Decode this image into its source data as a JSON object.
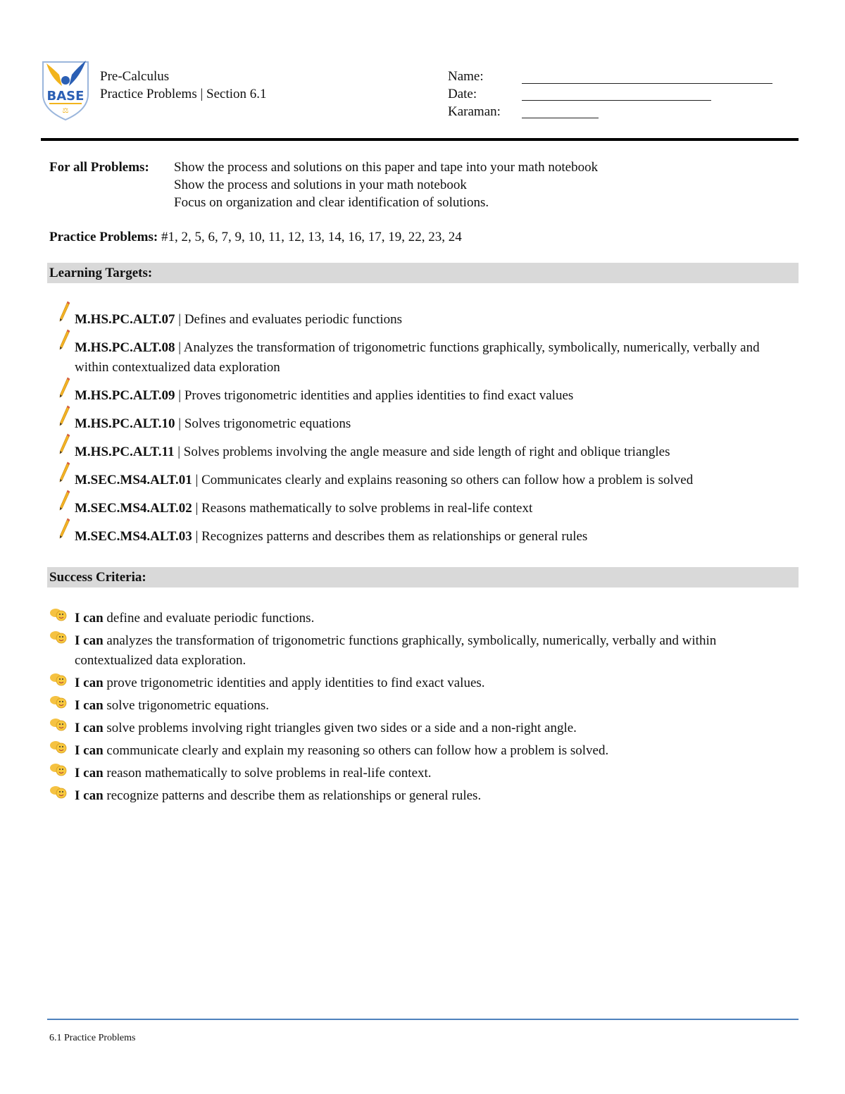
{
  "logo": {
    "text": "BASE",
    "colors": {
      "gold": "#f2b41c",
      "blue": "#2b5fb4"
    }
  },
  "header": {
    "course": "Pre-Calculus",
    "subtitle": "Practice Problems | Section 6.1"
  },
  "fields": [
    {
      "label": "Name:"
    },
    {
      "label": "Date:"
    },
    {
      "label": "Karaman:"
    }
  ],
  "instructions": {
    "label": "For all Problems:",
    "lines": [
      "Show the process and solutions on this paper and tape into your math notebook",
      "Show the process and solutions in your math notebook",
      "Focus on organization and clear identification of solutions."
    ]
  },
  "practice": {
    "label": "Practice Problems:",
    "value": "#1, 2, 5, 6, 7, 9, 10, 11, 12, 13, 14, 16, 17, 19, 22, 23, 24"
  },
  "learning_targets": {
    "title": "Learning Targets:",
    "icon": "pencil-icon",
    "items": [
      {
        "code": "M.HS.PC.ALT.07",
        "text": " | Defines and evaluates periodic functions"
      },
      {
        "code": "M.HS.PC.ALT.08",
        "text": " | Analyzes the transformation of trigonometric functions graphically, symbolically, numerically, verbally and within contextualized data exploration"
      },
      {
        "code": "M.HS.PC.ALT.09",
        "text": " | Proves trigonometric identities and applies identities to find exact values"
      },
      {
        "code": "M.HS.PC.ALT.10",
        "text": " | Solves trigonometric equations"
      },
      {
        "code": "M.HS.PC.ALT.11",
        "text": " | Solves problems involving the angle measure and side length of right and oblique triangles"
      },
      {
        "code": "M.SEC.MS4.ALT.01",
        "text": " | Communicates clearly and explains reasoning so others can follow how a problem is solved"
      },
      {
        "code": "M.SEC.MS4.ALT.02",
        "text": " | Reasons mathematically to solve problems in real-life context"
      },
      {
        "code": "M.SEC.MS4.ALT.03",
        "text": " | Recognizes patterns and describes them as relationships or general rules"
      }
    ]
  },
  "success_criteria": {
    "title": "Success Criteria:",
    "icon": "thumbs-up-smiley-icon",
    "lead": "I can",
    "items": [
      " define and evaluate periodic functions.",
      " analyzes the transformation of trigonometric functions graphically, symbolically, numerically, verbally and within contextualized data exploration.",
      " prove trigonometric identities and apply identities to find exact values.",
      " solve trigonometric equations.",
      " solve problems involving right triangles given two sides or a side and a non-right angle.",
      " communicate clearly and explain my reasoning so others can follow how a problem is solved.",
      " reason mathematically to solve problems in real-life context.",
      " recognize patterns and describe them as relationships or general rules."
    ]
  },
  "footer": {
    "text": "6.1 Practice Problems",
    "rule_color": "#4f81bd"
  }
}
